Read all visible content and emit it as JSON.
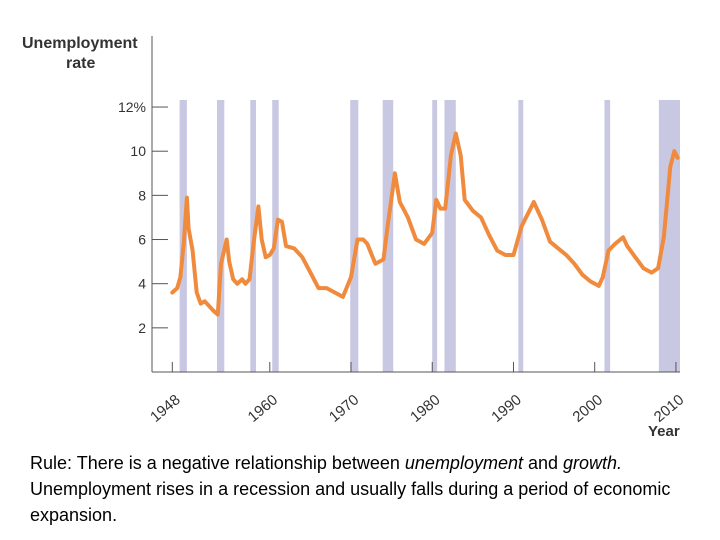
{
  "chart_data": {
    "type": "line",
    "ylabel_lines": [
      "Unemployment",
      "rate"
    ],
    "xlabel": "Year",
    "y_ticks": [
      2,
      4,
      6,
      8,
      10,
      12
    ],
    "y_tick_labels": [
      "2",
      "4",
      "6",
      "8",
      "10",
      "12%"
    ],
    "x_ticks": [
      1948,
      1960,
      1970,
      1980,
      1990,
      2000,
      2010
    ],
    "x_tick_labels": [
      "1948",
      "1960",
      "1970",
      "1980",
      "1990",
      "2000",
      "2010"
    ],
    "xlim": [
      1945.5,
      2010.5
    ],
    "ylim": [
      0,
      12.5
    ],
    "line_color": "#f08a3c",
    "recession_color": "#c9c8e3",
    "recessions": [
      [
        1948.9,
        1949.8
      ],
      [
        1953.5,
        1954.4
      ],
      [
        1957.6,
        1958.3
      ],
      [
        1960.3,
        1961.1
      ],
      [
        1969.9,
        1970.9
      ],
      [
        1973.9,
        1975.2
      ],
      [
        1980.0,
        1980.6
      ],
      [
        1981.5,
        1982.9
      ],
      [
        1990.6,
        1991.2
      ],
      [
        2001.2,
        2001.9
      ],
      [
        2007.9,
        2010.5
      ]
    ],
    "series": [
      {
        "values": [
          [
            1948.0,
            3.6
          ],
          [
            1948.6,
            3.8
          ],
          [
            1949.0,
            4.3
          ],
          [
            1949.4,
            5.8
          ],
          [
            1949.8,
            7.9
          ],
          [
            1950.0,
            6.5
          ],
          [
            1950.5,
            5.5
          ],
          [
            1951.0,
            3.6
          ],
          [
            1951.5,
            3.1
          ],
          [
            1952.0,
            3.2
          ],
          [
            1952.5,
            3.0
          ],
          [
            1953.0,
            2.8
          ],
          [
            1953.6,
            2.6
          ],
          [
            1954.0,
            4.9
          ],
          [
            1954.7,
            6.0
          ],
          [
            1955.0,
            5.0
          ],
          [
            1955.5,
            4.2
          ],
          [
            1956.0,
            4.0
          ],
          [
            1956.6,
            4.2
          ],
          [
            1957.0,
            4.0
          ],
          [
            1957.5,
            4.2
          ],
          [
            1958.0,
            5.8
          ],
          [
            1958.6,
            7.5
          ],
          [
            1959.0,
            6.0
          ],
          [
            1959.5,
            5.2
          ],
          [
            1960.0,
            5.3
          ],
          [
            1960.5,
            5.6
          ],
          [
            1961.0,
            6.9
          ],
          [
            1961.5,
            6.8
          ],
          [
            1962.0,
            5.7
          ],
          [
            1963.0,
            5.6
          ],
          [
            1964.0,
            5.2
          ],
          [
            1965.0,
            4.5
          ],
          [
            1966.0,
            3.8
          ],
          [
            1967.0,
            3.8
          ],
          [
            1968.0,
            3.6
          ],
          [
            1969.0,
            3.4
          ],
          [
            1970.0,
            4.3
          ],
          [
            1970.8,
            6.0
          ],
          [
            1971.5,
            6.0
          ],
          [
            1972.0,
            5.8
          ],
          [
            1973.0,
            4.9
          ],
          [
            1974.0,
            5.1
          ],
          [
            1974.5,
            6.6
          ],
          [
            1975.4,
            9.0
          ],
          [
            1976.0,
            7.7
          ],
          [
            1977.0,
            7.0
          ],
          [
            1978.0,
            6.0
          ],
          [
            1979.0,
            5.8
          ],
          [
            1980.0,
            6.3
          ],
          [
            1980.5,
            7.8
          ],
          [
            1981.0,
            7.4
          ],
          [
            1981.6,
            7.4
          ],
          [
            1982.3,
            9.8
          ],
          [
            1982.9,
            10.8
          ],
          [
            1983.5,
            9.8
          ],
          [
            1984.0,
            7.8
          ],
          [
            1985.0,
            7.3
          ],
          [
            1986.0,
            7.0
          ],
          [
            1987.0,
            6.2
          ],
          [
            1988.0,
            5.5
          ],
          [
            1989.0,
            5.3
          ],
          [
            1990.0,
            5.3
          ],
          [
            1991.0,
            6.6
          ],
          [
            1992.5,
            7.7
          ],
          [
            1993.5,
            6.9
          ],
          [
            1994.5,
            5.9
          ],
          [
            1995.5,
            5.6
          ],
          [
            1996.5,
            5.3
          ],
          [
            1997.5,
            4.9
          ],
          [
            1998.5,
            4.4
          ],
          [
            1999.5,
            4.1
          ],
          [
            2000.5,
            3.9
          ],
          [
            2001.0,
            4.3
          ],
          [
            2001.7,
            5.5
          ],
          [
            2002.5,
            5.8
          ],
          [
            2003.5,
            6.1
          ],
          [
            2004.0,
            5.7
          ],
          [
            2005.0,
            5.2
          ],
          [
            2006.0,
            4.7
          ],
          [
            2007.0,
            4.5
          ],
          [
            2007.8,
            4.7
          ],
          [
            2008.5,
            6.1
          ],
          [
            2009.3,
            9.3
          ],
          [
            2009.8,
            10.0
          ],
          [
            2010.2,
            9.7
          ]
        ]
      }
    ]
  },
  "caption": {
    "part1": "Rule: There is a negative relationship between ",
    "em1": "unemployment",
    "part2": " and ",
    "em2": "growth.",
    "part3": "  Unemployment rises in a recession and usually falls during a period of economic expansion."
  }
}
